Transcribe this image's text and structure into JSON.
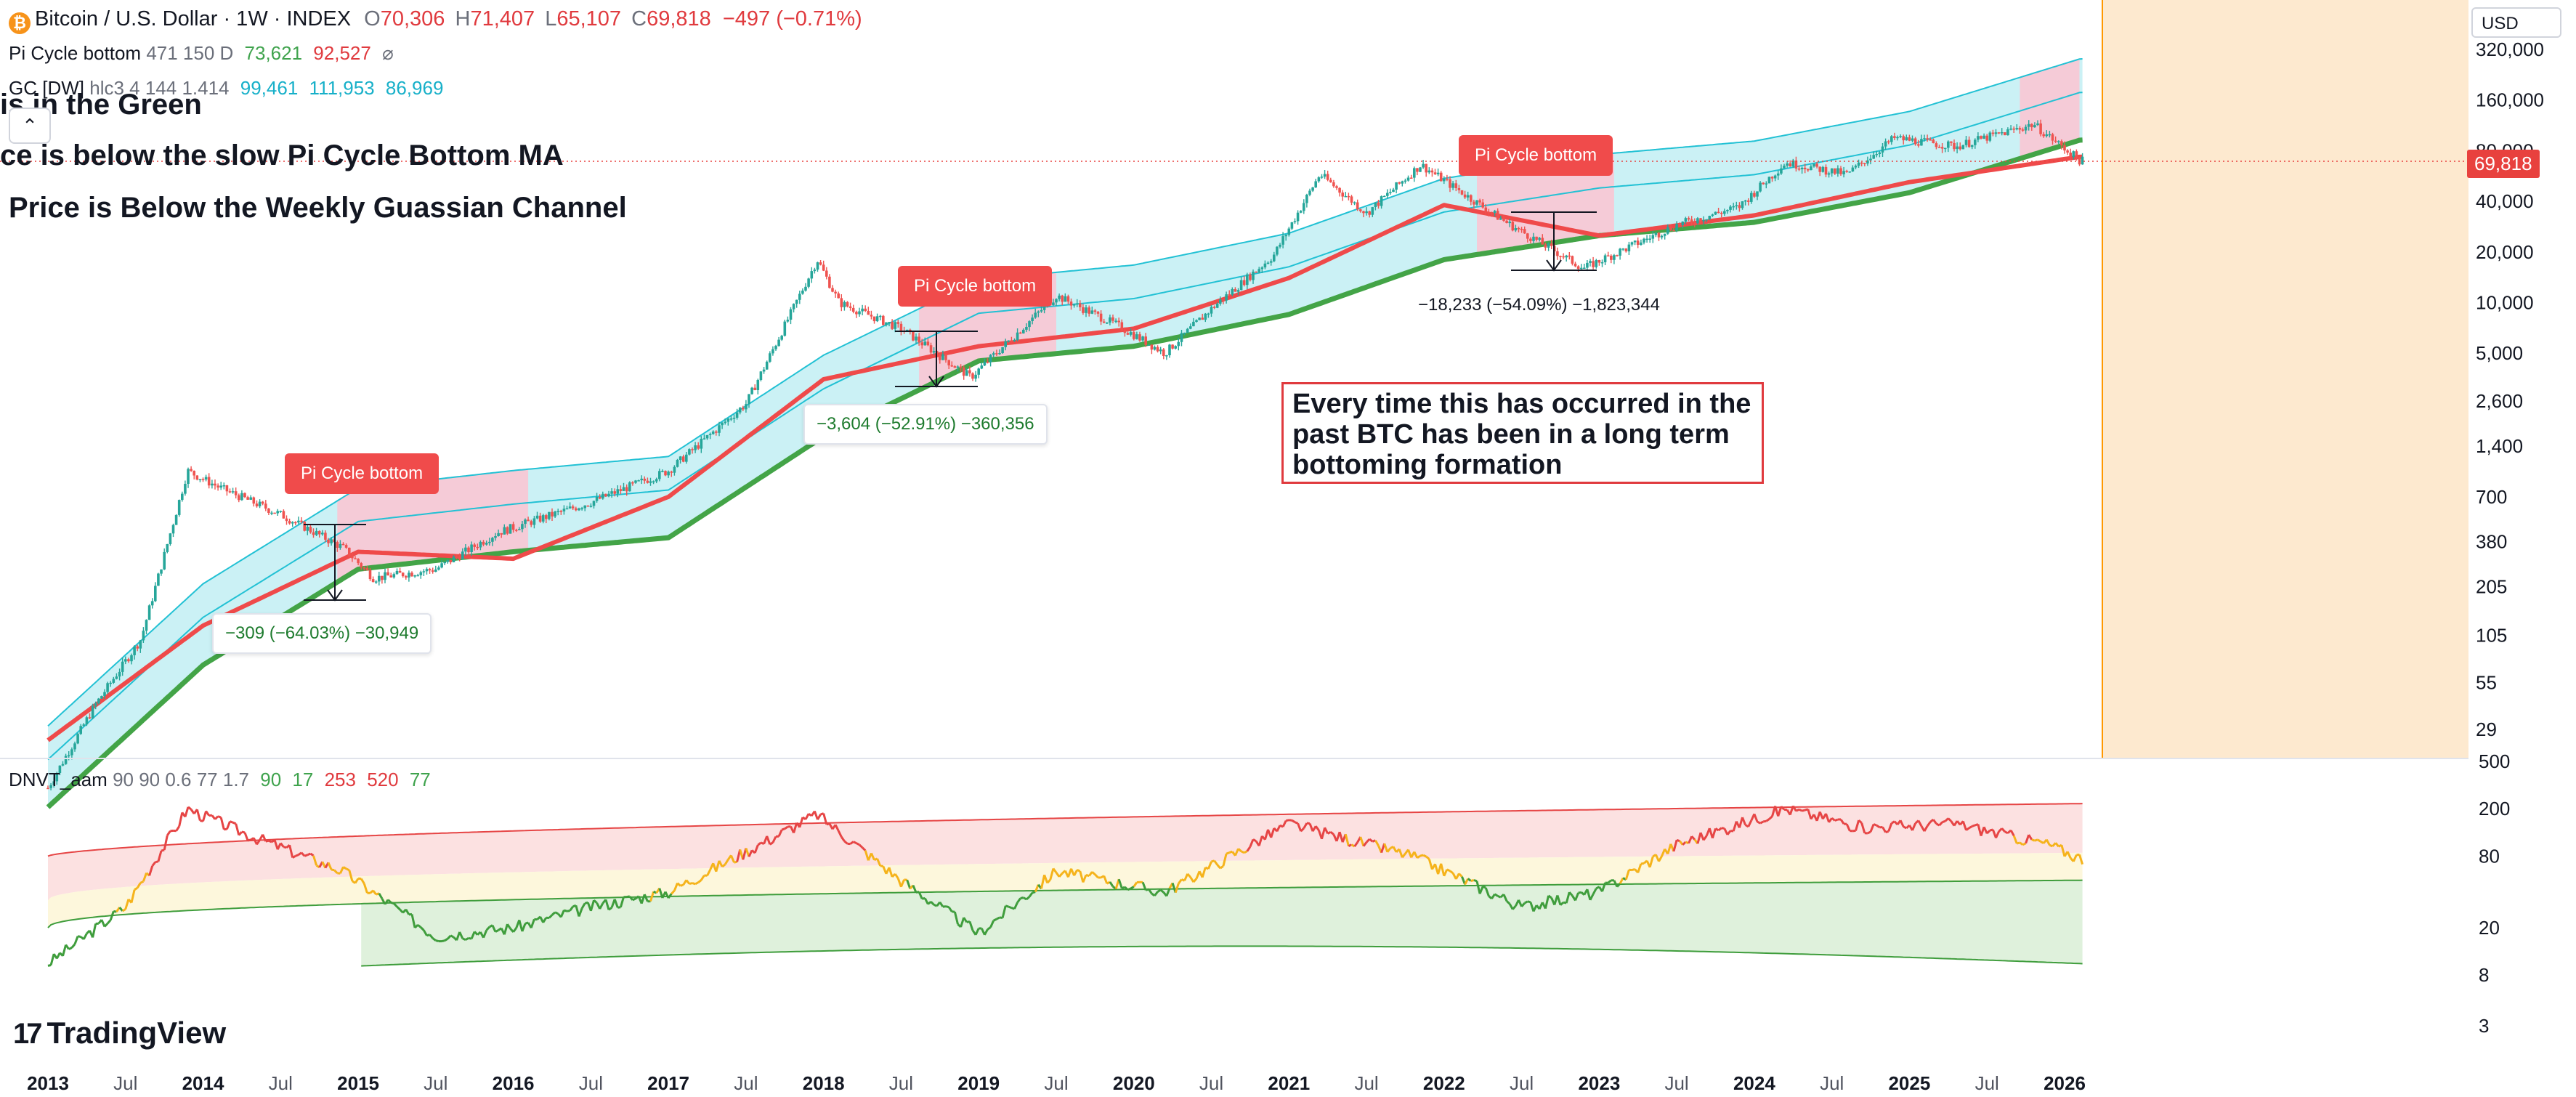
{
  "header": {
    "symbol": "Bitcoin / U.S. Dollar · 1W · INDEX",
    "ohlc": [
      {
        "k": "O",
        "v": "70,306"
      },
      {
        "k": "H",
        "v": "71,407"
      },
      {
        "k": "L",
        "v": "65,107"
      },
      {
        "k": "C",
        "v": "69,818"
      }
    ],
    "change": "−497 (−0.71%)",
    "icon": "bitcoin-icon"
  },
  "indicators": {
    "pi": {
      "name": "Pi Cycle bottom",
      "params": "471 150 D",
      "v1": "73,621",
      "v2": "92,527",
      "extra": "⌀"
    },
    "gc": {
      "name": "GC [DW]",
      "params": "hlc3 4 144 1.414",
      "v1": "99,461",
      "v2": "111,953",
      "v3": "86,969"
    },
    "dnvt": {
      "name": "DNVT_aam",
      "params": "90 90 0.6 77 1.7",
      "v1": "90",
      "v2": "17",
      "v3": "253",
      "v4": "520",
      "v5": "77"
    }
  },
  "headlines": {
    "line1": "is in the Green",
    "line2": "ce is below the slow Pi Cycle Bottom MA",
    "line3": "Price is Below the Weekly Guassian Channel"
  },
  "collapse_glyph": "⌃",
  "annotation": {
    "text": "Every time this has occurred in the past BTC has been in a long term bottoming formation"
  },
  "pi_labels": [
    "Pi Cycle bottom",
    "Pi Cycle bottom",
    "Pi Cycle bottom"
  ],
  "measures": [
    {
      "text": "−309 (−64.03%) −30,949"
    },
    {
      "text": "−3,604 (−52.91%) −360,356"
    },
    {
      "text": "−18,233 (−54.09%) −1,823,344"
    }
  ],
  "currency": "USD",
  "last_price": "69,818",
  "brand": {
    "mark": "17",
    "name": "TradingView"
  },
  "colors": {
    "price_up": "#26a69a",
    "price_down": "#ef5350",
    "pi_fast": "#ef4a4a",
    "pi_slow": "#43a447",
    "gaussian_fill": "#b9ecf2",
    "gaussian_line": "#22c1d4",
    "gaussian_bear": "#f9c6d4",
    "future_zone": "#fde9cf",
    "dnvt_mid": "#f5b31b",
    "dnvt_low": "#3f9d3c",
    "dnvt_high": "#e64545"
  },
  "chart_data": [
    {
      "type": "line",
      "x_unit": "year",
      "log_scale": true,
      "x_ticks": [
        "2013",
        "Jul",
        "2014",
        "Jul",
        "2015",
        "Jul",
        "2016",
        "Jul",
        "2017",
        "Jul",
        "2018",
        "Jul",
        "2019",
        "Jul",
        "2020",
        "Jul",
        "2021",
        "Jul",
        "2022",
        "Jul",
        "2023",
        "Jul",
        "2024",
        "Jul",
        "2025",
        "Jul",
        "2026"
      ],
      "y_ticks": [
        "320,000",
        "160,000",
        "80,000",
        "40,000",
        "20,000",
        "10,000",
        "5,000",
        "2,600",
        "1,400",
        "700",
        "380",
        "205",
        "105",
        "55",
        "29"
      ],
      "series": [
        {
          "x": [
            2013.0,
            2013.3,
            2013.6,
            2013.9,
            2014.1,
            2014.5,
            2014.9,
            2015.1,
            2015.5,
            2015.9,
            2016.5,
            2017.0,
            2017.5,
            2017.96,
            2018.1,
            2018.5,
            2018.95,
            2019.5,
            2019.9,
            2020.2,
            2020.5,
            2020.9,
            2021.2,
            2021.5,
            2021.85,
            2022.4,
            2022.9,
            2023.5,
            2023.9,
            2024.2,
            2024.6,
            2024.9,
            2025.3,
            2025.8,
            2026.1
          ],
          "y": [
            13,
            40,
            100,
            1000,
            800,
            550,
            350,
            230,
            260,
            430,
            650,
            1000,
            2500,
            18000,
            10000,
            7000,
            3600,
            11000,
            7300,
            5000,
            9200,
            19000,
            58000,
            34000,
            66000,
            30000,
            16000,
            29000,
            37000,
            68000,
            58000,
            95000,
            85000,
            115000,
            69818
          ]
        },
        {
          "name": "",
          "x": [
            2013.0,
            2014.0,
            2015.0,
            2016.0,
            2017.0,
            2018.0,
            2019.0,
            2020.0,
            2021.0,
            2022.0,
            2023.0,
            2024.0,
            2025.0,
            2026.1
          ],
          "y": [
            25,
            120,
            330,
            300,
            700,
            3500,
            5500,
            7000,
            14000,
            38000,
            25000,
            33000,
            52000,
            73621
          ]
        },
        {
          "name": "",
          "x": [
            2013.0,
            2014.0,
            2015.0,
            2016.0,
            2017.0,
            2018.0,
            2019.0,
            2020.0,
            2021.0,
            2022.0,
            2023.0,
            2024.0,
            2025.0,
            2026.1
          ],
          "y": [
            10,
            70,
            260,
            330,
            400,
            1600,
            4500,
            5500,
            8500,
            18000,
            25000,
            30000,
            45000,
            92527
          ]
        }
      ]
    },
    {
      "type": "line",
      "log_scale": true,
      "y_ticks": [
        "500",
        "200",
        "80",
        "20",
        "8",
        "3"
      ],
      "series": [
        {
          "x": [
            2013.0,
            2013.5,
            2013.9,
            2014.3,
            2014.9,
            2015.5,
            2016.0,
            2016.5,
            2017.0,
            2017.96,
            2018.5,
            2019.0,
            2019.5,
            2020.2,
            2021.0,
            2021.8,
            2022.5,
            2023.0,
            2023.5,
            2024.2,
            2024.7,
            2025.3,
            2025.9,
            2026.1
          ],
          "y": [
            10,
            30,
            200,
            120,
            60,
            17,
            20,
            30,
            40,
            180,
            50,
            18,
            60,
            40,
            150,
            80,
            30,
            40,
            100,
            200,
            140,
            150,
            100,
            77
          ]
        }
      ]
    }
  ]
}
